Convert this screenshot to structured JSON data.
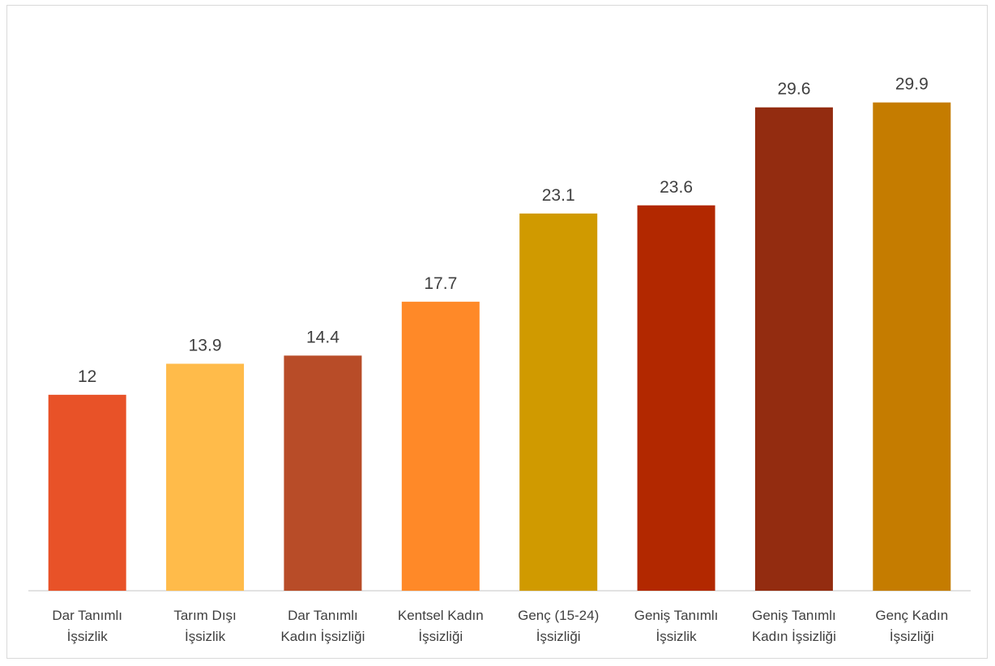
{
  "chart_data": {
    "type": "bar",
    "title": "",
    "xlabel": "",
    "ylabel": "",
    "ylim": [
      0,
      32
    ],
    "grid": false,
    "legend": "none",
    "categories": [
      [
        "Dar Tanımlı",
        "İşsizlik"
      ],
      [
        "Tarım Dışı",
        "İşsizlik"
      ],
      [
        "Dar Tanımlı",
        "Kadın İşsizliği"
      ],
      [
        "Kentsel Kadın",
        "İşsizliği"
      ],
      [
        "Genç (15-24)",
        "İşsizliği"
      ],
      [
        "Geniş Tanımlı",
        "İşsizlik"
      ],
      [
        "Geniş Tanımlı",
        "Kadın İşsizliği"
      ],
      [
        "Genç Kadın",
        "İşsizliği"
      ]
    ],
    "values": [
      12,
      13.9,
      14.4,
      17.7,
      23.1,
      23.6,
      29.6,
      29.9
    ],
    "value_labels": [
      "12",
      "13.9",
      "14.4",
      "17.7",
      "23.1",
      "23.6",
      "29.6",
      "29.9"
    ],
    "colors": [
      "#E85228",
      "#FFBB4A",
      "#B84C28",
      "#FF8928",
      "#D09A00",
      "#B22800",
      "#932C10",
      "#C57C00"
    ],
    "axis_color": "#d9d9d9"
  }
}
